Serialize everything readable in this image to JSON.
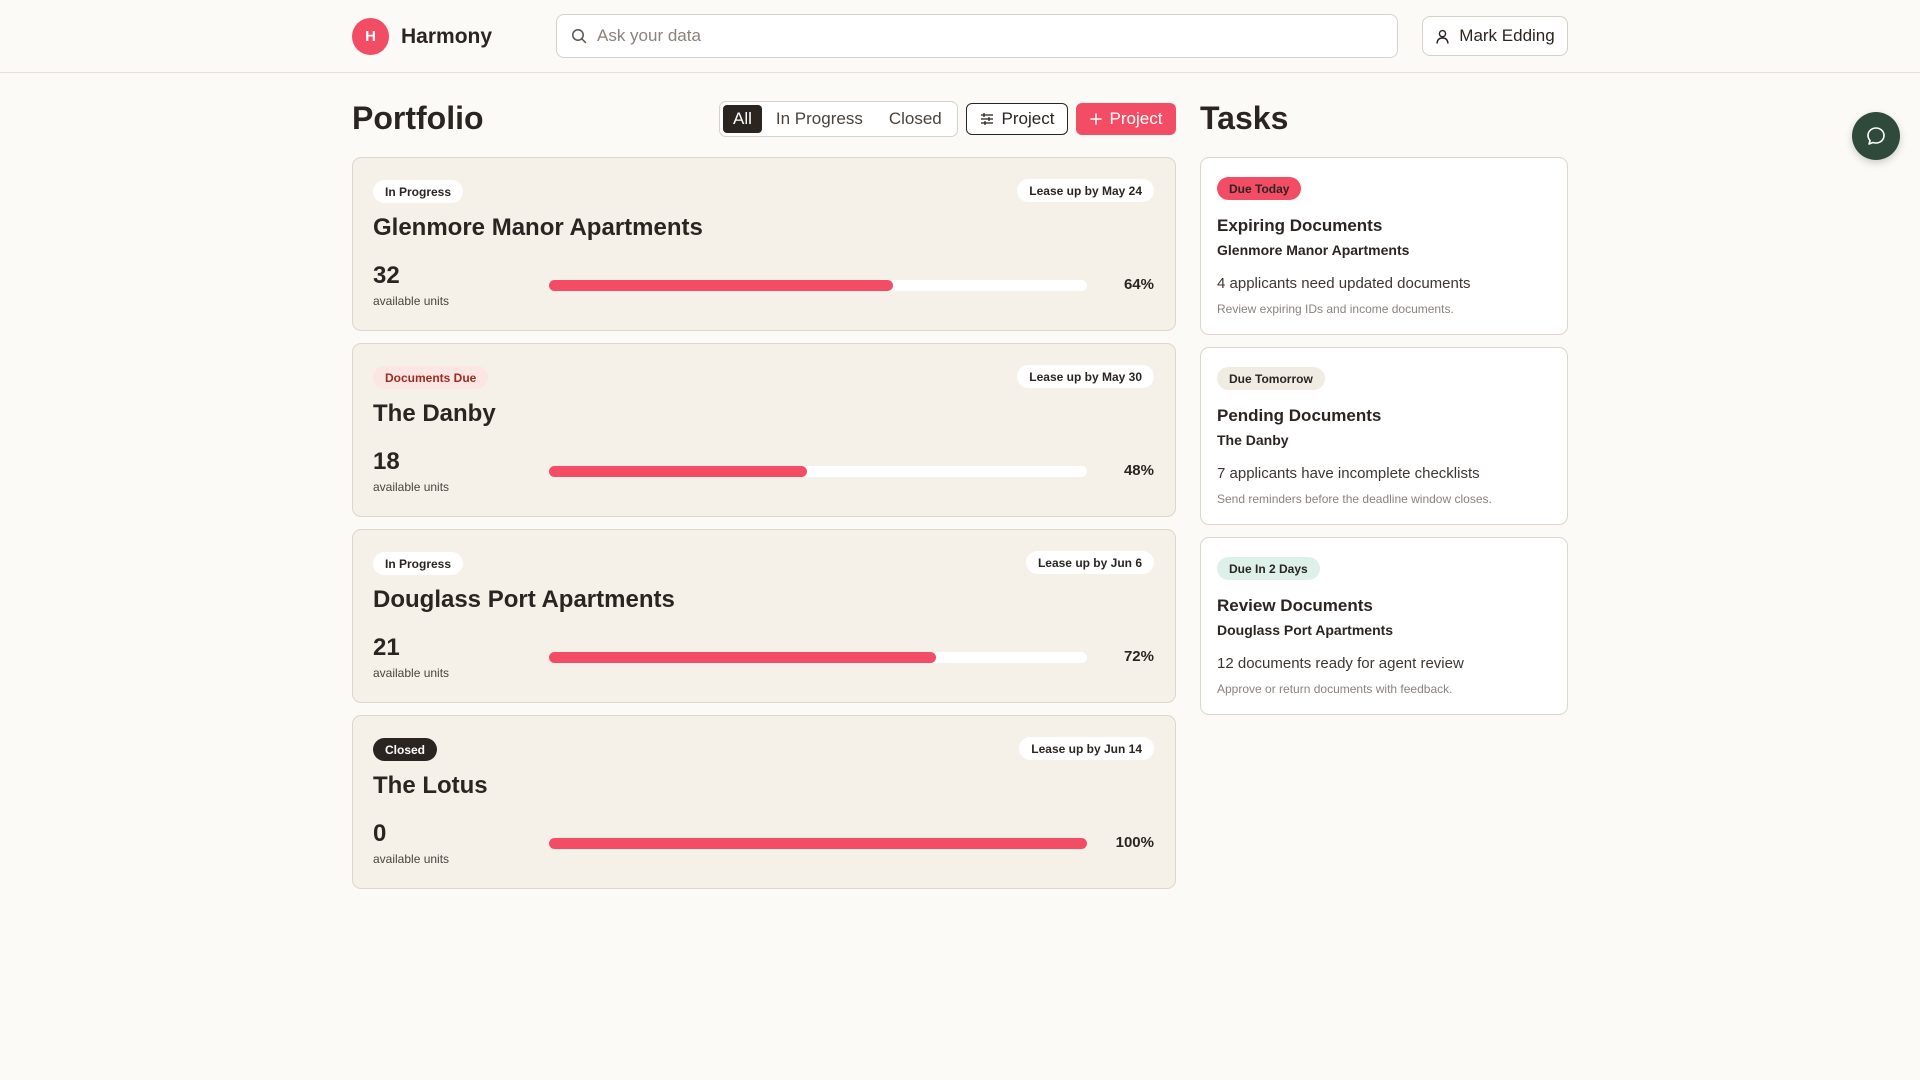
{
  "header": {
    "logo_letter": "H",
    "brand": "Harmony",
    "search_placeholder": "Ask your data",
    "user_name": "Mark Edding"
  },
  "portfolio": {
    "title": "Portfolio",
    "filters": [
      "All",
      "In Progress",
      "Closed"
    ],
    "active_filter": "All",
    "filter_button_label": "Project",
    "add_button_label": "Project",
    "cards": [
      {
        "status": "In Progress",
        "status_type": "progress",
        "lease": "Lease up by May 24",
        "name": "Glenmore Manor Apartments",
        "units": "32",
        "units_label": "available units",
        "percent_label": "64%",
        "percent": 64
      },
      {
        "status": "Documents Due",
        "status_type": "docs",
        "lease": "Lease up by May 30",
        "name": "The Danby",
        "units": "18",
        "units_label": "available units",
        "percent_label": "48%",
        "percent": 48
      },
      {
        "status": "In Progress",
        "status_type": "progress",
        "lease": "Lease up by Jun 6",
        "name": "Douglass Port Apartments",
        "units": "21",
        "units_label": "available units",
        "percent_label": "72%",
        "percent": 72
      },
      {
        "status": "Closed",
        "status_type": "closed",
        "lease": "Lease up by Jun 14",
        "name": "The Lotus",
        "units": "0",
        "units_label": "available units",
        "percent_label": "100%",
        "percent": 100
      }
    ]
  },
  "tasks": {
    "title": "Tasks",
    "items": [
      {
        "due": "Due Today",
        "due_type": "today",
        "title": "Expiring Documents",
        "project": "Glenmore Manor Apartments",
        "description": "4 applicants need updated documents",
        "note": "Review expiring IDs and income documents."
      },
      {
        "due": "Due Tomorrow",
        "due_type": "tomorrow",
        "title": "Pending Documents",
        "project": "The Danby",
        "description": "7 applicants have incomplete checklists",
        "note": "Send reminders before the deadline window closes."
      },
      {
        "due": "Due In 2 Days",
        "due_type": "twodays",
        "title": "Review Documents",
        "project": "Douglass Port Apartments",
        "description": "12 documents ready for agent review",
        "note": "Approve or return documents with feedback."
      }
    ]
  },
  "colors": {
    "accent": "#f24d64",
    "dark": "#2b2522",
    "chat": "#2f4a3b"
  },
  "icons": {
    "search": "search-icon",
    "user": "user-icon",
    "filter": "sliders-icon",
    "add": "plus-icon",
    "chat": "chat-bubble-icon"
  }
}
